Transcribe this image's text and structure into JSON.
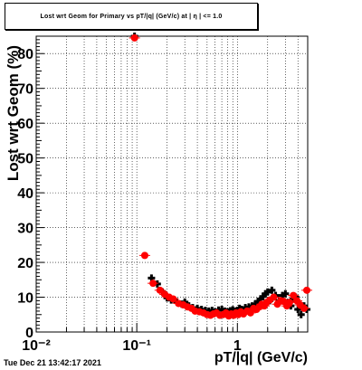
{
  "chart_data": {
    "type": "scatter",
    "title": "Lost wrt Geom for Primary vs pT/|q| (GeV/c) at | η | <= 1.0",
    "xlabel": "pT/|q| (GeV/c)",
    "ylabel": "Lost wrt Geom (%)",
    "xscale": "log",
    "xlim": [
      0.01,
      5.0
    ],
    "ylim": [
      0,
      85
    ],
    "xticks": [
      {
        "value": 0.01,
        "label": "10⁻²"
      },
      {
        "value": 0.1,
        "label": "10⁻¹"
      },
      {
        "value": 1,
        "label": "1"
      }
    ],
    "yticks": [
      0,
      10,
      20,
      30,
      40,
      50,
      60,
      70,
      80
    ],
    "grid": true,
    "series": [
      {
        "color": "#000000",
        "marker": "cross",
        "x": [
          0.095,
          0.14,
          0.16,
          0.18,
          0.2,
          0.22,
          0.25,
          0.28,
          0.3,
          0.33,
          0.36,
          0.4,
          0.44,
          0.48,
          0.52,
          0.56,
          0.6,
          0.65,
          0.7,
          0.75,
          0.8,
          0.85,
          0.9,
          0.95,
          1.0,
          1.05,
          1.1,
          1.2,
          1.3,
          1.4,
          1.5,
          1.6,
          1.7,
          1.8,
          1.9,
          2.0,
          2.1,
          2.2,
          2.4,
          2.6,
          2.8,
          3.0,
          3.2,
          3.4,
          3.6,
          3.8,
          4.0,
          4.3,
          4.6,
          4.9
        ],
        "y": [
          85,
          15.5,
          13.8,
          11.5,
          9.8,
          9.2,
          8.7,
          8.0,
          8.6,
          7.5,
          7.0,
          6.8,
          6.5,
          6.2,
          6.0,
          6.2,
          5.8,
          6.3,
          6.5,
          6.0,
          5.8,
          6.1,
          6.4,
          6.0,
          6.2,
          6.8,
          6.5,
          7.0,
          7.2,
          7.5,
          8.0,
          8.8,
          9.5,
          10.2,
          11.0,
          11.5,
          9.0,
          12.0,
          10.5,
          9.0,
          10.5,
          11.0,
          8.5,
          7.5,
          9.5,
          10.0,
          6.5,
          5.0,
          7.5,
          6.5
        ]
      },
      {
        "color": "#ff0000",
        "marker": "circle",
        "x": [
          0.095,
          0.12,
          0.145,
          0.17,
          0.19,
          0.21,
          0.23,
          0.26,
          0.29,
          0.32,
          0.35,
          0.38,
          0.42,
          0.46,
          0.5,
          0.54,
          0.58,
          0.62,
          0.67,
          0.72,
          0.77,
          0.82,
          0.87,
          0.92,
          0.97,
          1.02,
          1.08,
          1.15,
          1.25,
          1.35,
          1.45,
          1.55,
          1.65,
          1.75,
          1.85,
          1.95,
          2.1,
          2.3,
          2.5,
          2.7,
          2.9,
          3.1,
          3.3,
          3.6,
          3.9,
          4.2,
          4.6,
          4.9
        ],
        "y": [
          84.5,
          22,
          14,
          12,
          10.8,
          10,
          9.5,
          8.2,
          7.8,
          7.2,
          6.8,
          6.0,
          5.8,
          5.5,
          5.0,
          4.8,
          5.2,
          5.5,
          4.8,
          5.0,
          5.5,
          4.6,
          5.2,
          4.8,
          5.5,
          5.0,
          5.8,
          5.2,
          6.0,
          5.5,
          6.8,
          6.5,
          7.2,
          8.0,
          7.5,
          8.5,
          9.2,
          10.0,
          8.0,
          9.0,
          8.8,
          7.5,
          8.5,
          10.5,
          9.0,
          7.8,
          6.8,
          12.0
        ]
      }
    ],
    "timestamp": "Tue Dec 21 13:42:17 2021"
  }
}
